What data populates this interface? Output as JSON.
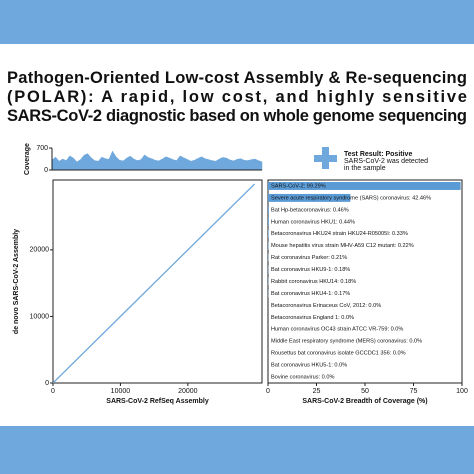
{
  "title_lines": [
    "Pathogen-Oriented Low-cost Assembly & Re-sequencing",
    "(POLAR): A rapid, low cost, and highly sensitive",
    "SARS-CoV-2 diagnostic based on whole genome sequencing"
  ],
  "test_result": {
    "heading": "Test Result: Positive",
    "lines": [
      "SARS-CoV-2 was detected",
      "in the sample"
    ]
  },
  "chart_data": [
    {
      "type": "area",
      "ylabel": "Coverage",
      "ylim": [
        0,
        700
      ],
      "yticks": [
        0,
        700
      ],
      "color": "#6fa8dc",
      "values": [
        320,
        410,
        280,
        350,
        300,
        450,
        380,
        260,
        330,
        470,
        520,
        390,
        300,
        280,
        410,
        360,
        340,
        600,
        420,
        310,
        290,
        380,
        440,
        350,
        300,
        330,
        480,
        400,
        360,
        310,
        290,
        350,
        420,
        380,
        330,
        300,
        450,
        390,
        340,
        280,
        310,
        370,
        420,
        360,
        330,
        300,
        280,
        350,
        400,
        380,
        320,
        290,
        340,
        360,
        310,
        300,
        330,
        350,
        300,
        260
      ]
    },
    {
      "type": "line",
      "xlabel": "SARS-CoV-2 RefSeq Assembly",
      "ylabel": "de novo SARS-CoV-2 Assembly",
      "xlim": [
        0,
        31000
      ],
      "ylim": [
        0,
        30500
      ],
      "xticks": [
        0,
        10000,
        20000
      ],
      "yticks": [
        0,
        10000,
        20000
      ],
      "color": "#6fa8dc",
      "x": [
        0,
        29903
      ],
      "values": [
        0,
        29903
      ]
    },
    {
      "type": "barh",
      "xlabel": "SARS-CoV-2 Breadth of Coverage (%)",
      "xlim": [
        0,
        100
      ],
      "xticks": [
        0,
        25,
        50,
        75,
        100
      ],
      "color": "#5b9bd5",
      "categories": [
        "SARS-CoV-2: 99.29%",
        "Severe acute respiratory syndrome (SARS) coronavirus: 42.46%",
        "Bat Hp-betacoronavirus: 0.46%",
        "Human coronavirus HKU1: 0.44%",
        "Betacoronavirus HKU24 strain HKU24-R05005I: 0.33%",
        "Mouse hepatitis virus strain MHV-A59 C12 mutant: 0.22%",
        "Rat coronavirus Parker: 0.21%",
        "Bat coronavirus HKU9-1: 0.18%",
        "Rabbit coronavirus HKU14: 0.18%",
        "Bat coronavirus HKU4-1: 0.17%",
        "Betacoronavirus Erinaceus CoV, 2012: 0.0%",
        "Betacoronavirus England 1: 0.0%",
        "Human coronavirus OC43 strain ATCC VR-759: 0.0%",
        "Middle East respiratory syndrome (MERS) coronavirus: 0.0%",
        "Rousettus bat coronavirus isolate GCCDC1 356: 0.0%",
        "Bat coronavirus HKU5-1: 0.0%",
        "Bovine coronavirus: 0.0%"
      ],
      "values": [
        99.29,
        42.46,
        0.46,
        0.44,
        0.33,
        0.22,
        0.21,
        0.18,
        0.18,
        0.17,
        0,
        0,
        0,
        0,
        0,
        0,
        0
      ]
    }
  ]
}
